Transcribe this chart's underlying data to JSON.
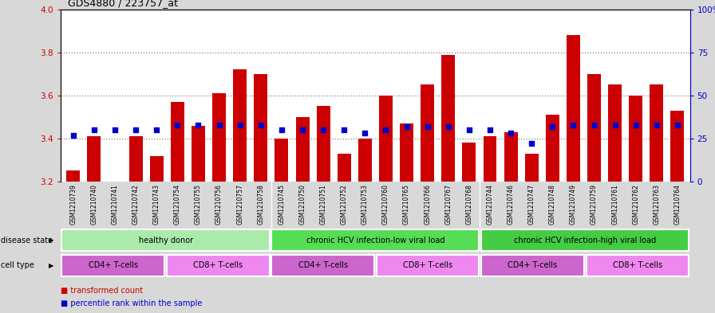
{
  "title": "GDS4880 / 223757_at",
  "samples": [
    "GSM1210739",
    "GSM1210740",
    "GSM1210741",
    "GSM1210742",
    "GSM1210743",
    "GSM1210754",
    "GSM1210755",
    "GSM1210756",
    "GSM1210757",
    "GSM1210758",
    "GSM1210745",
    "GSM1210750",
    "GSM1210751",
    "GSM1210752",
    "GSM1210753",
    "GSM1210760",
    "GSM1210765",
    "GSM1210766",
    "GSM1210767",
    "GSM1210768",
    "GSM1210744",
    "GSM1210746",
    "GSM1210747",
    "GSM1210748",
    "GSM1210749",
    "GSM1210759",
    "GSM1210761",
    "GSM1210762",
    "GSM1210763",
    "GSM1210764"
  ],
  "bar_values": [
    3.25,
    3.41,
    3.2,
    3.41,
    3.32,
    3.57,
    3.46,
    3.61,
    3.72,
    3.7,
    3.4,
    3.5,
    3.55,
    3.33,
    3.4,
    3.6,
    3.47,
    3.65,
    3.79,
    3.38,
    3.41,
    3.43,
    3.33,
    3.51,
    3.88,
    3.7,
    3.65,
    3.6,
    3.65,
    3.53
  ],
  "percentile_values": [
    27,
    30,
    30,
    30,
    30,
    33,
    33,
    33,
    33,
    33,
    30,
    30,
    30,
    30,
    28,
    30,
    32,
    32,
    32,
    30,
    30,
    28,
    22,
    32,
    33,
    33,
    33,
    33,
    33,
    33
  ],
  "bar_color": "#cc0000",
  "percentile_color": "#0000cc",
  "y_min": 3.2,
  "y_max": 4.0,
  "y_ticks_left": [
    3.2,
    3.4,
    3.6,
    3.8,
    4.0
  ],
  "y_ticks_right": [
    0,
    25,
    50,
    75,
    100
  ],
  "grid_lines": [
    3.4,
    3.6,
    3.8
  ],
  "disease_states": [
    {
      "label": "healthy donor",
      "start": 0,
      "end": 9,
      "color": "#aaeaaa"
    },
    {
      "label": "chronic HCV infection-low viral load",
      "start": 10,
      "end": 19,
      "color": "#55dd55"
    },
    {
      "label": "chronic HCV infection-high viral load",
      "start": 20,
      "end": 29,
      "color": "#44cc44"
    }
  ],
  "cell_types": [
    {
      "label": "CD4+ T-cells",
      "start": 0,
      "end": 4,
      "color": "#cc66cc"
    },
    {
      "label": "CD8+ T-cells",
      "start": 5,
      "end": 9,
      "color": "#ee88ee"
    },
    {
      "label": "CD4+ T-cells",
      "start": 10,
      "end": 14,
      "color": "#cc66cc"
    },
    {
      "label": "CD8+ T-cells",
      "start": 15,
      "end": 19,
      "color": "#ee88ee"
    },
    {
      "label": "CD4+ T-cells",
      "start": 20,
      "end": 24,
      "color": "#cc66cc"
    },
    {
      "label": "CD8+ T-cells",
      "start": 25,
      "end": 29,
      "color": "#ee88ee"
    }
  ],
  "background_color": "#d8d8d8",
  "plot_bg_color": "#ffffff",
  "xtick_bg_color": "#d0d0d0"
}
